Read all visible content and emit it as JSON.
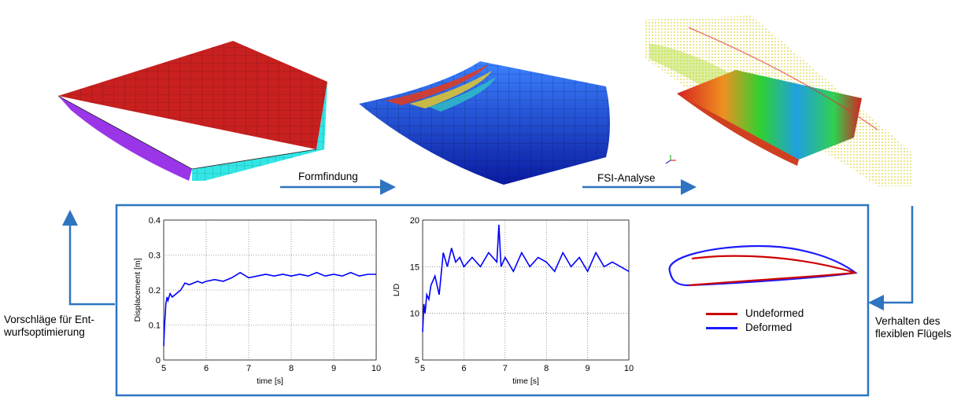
{
  "arrows": {
    "formfindung": "Formfindung",
    "fsi": "FSI-Analyse"
  },
  "left_label": [
    "Vorschläge für Ent-",
    "wurfsoptimierung"
  ],
  "right_label": [
    "Verhalten des",
    "flexiblen Flügels"
  ],
  "legend": {
    "undeformed": "Undeformed",
    "deformed": "Deformed",
    "undeformed_color": "#cc0000",
    "deformed_color": "#1a1aff"
  },
  "chart_data": [
    {
      "type": "line",
      "xlabel": "time [s]",
      "ylabel": "Displacement [m]",
      "xlim": [
        5,
        10
      ],
      "ylim": [
        0,
        0.4
      ],
      "xticks": [
        "5",
        "6",
        "7",
        "8",
        "9",
        "10"
      ],
      "yticks": [
        "0",
        "0.1",
        "0.2",
        "0.3",
        "0.4"
      ],
      "grid": true,
      "color": "#0000ff",
      "x": [
        5.0,
        5.02,
        5.05,
        5.08,
        5.1,
        5.15,
        5.2,
        5.3,
        5.4,
        5.5,
        5.6,
        5.7,
        5.8,
        5.9,
        6.0,
        6.2,
        6.4,
        6.6,
        6.8,
        7.0,
        7.2,
        7.4,
        7.6,
        7.8,
        8.0,
        8.2,
        8.4,
        8.6,
        8.8,
        9.0,
        9.2,
        9.4,
        9.6,
        9.8,
        10.0
      ],
      "y": [
        0.04,
        0.1,
        0.16,
        0.18,
        0.17,
        0.19,
        0.18,
        0.19,
        0.2,
        0.22,
        0.215,
        0.22,
        0.225,
        0.22,
        0.225,
        0.23,
        0.225,
        0.235,
        0.25,
        0.235,
        0.24,
        0.245,
        0.24,
        0.245,
        0.24,
        0.245,
        0.24,
        0.25,
        0.24,
        0.245,
        0.24,
        0.25,
        0.24,
        0.245,
        0.245
      ]
    },
    {
      "type": "line",
      "xlabel": "time [s]",
      "ylabel": "L/D",
      "xlim": [
        5,
        10
      ],
      "ylim": [
        5,
        20
      ],
      "xticks": [
        "5",
        "6",
        "7",
        "8",
        "9",
        "10"
      ],
      "yticks": [
        "5",
        "10",
        "15",
        "20"
      ],
      "grid": true,
      "color": "#0000ff",
      "x": [
        5.0,
        5.03,
        5.06,
        5.1,
        5.15,
        5.2,
        5.3,
        5.4,
        5.5,
        5.6,
        5.7,
        5.8,
        5.9,
        6.0,
        6.2,
        6.4,
        6.6,
        6.8,
        6.85,
        6.9,
        7.0,
        7.2,
        7.4,
        7.6,
        7.8,
        8.0,
        8.2,
        8.4,
        8.6,
        8.8,
        9.0,
        9.2,
        9.4,
        9.6,
        9.8,
        10.0
      ],
      "y": [
        8.0,
        11.0,
        10.0,
        12.0,
        11.5,
        13.0,
        14.0,
        12.0,
        16.5,
        15.0,
        17.0,
        15.5,
        16.0,
        15.0,
        16.0,
        15.0,
        16.5,
        15.5,
        19.5,
        15.0,
        16.0,
        14.5,
        16.5,
        15.0,
        16.0,
        15.5,
        14.5,
        16.5,
        15.0,
        16.0,
        14.5,
        16.5,
        15.0,
        15.5,
        15.0,
        14.5
      ]
    }
  ]
}
